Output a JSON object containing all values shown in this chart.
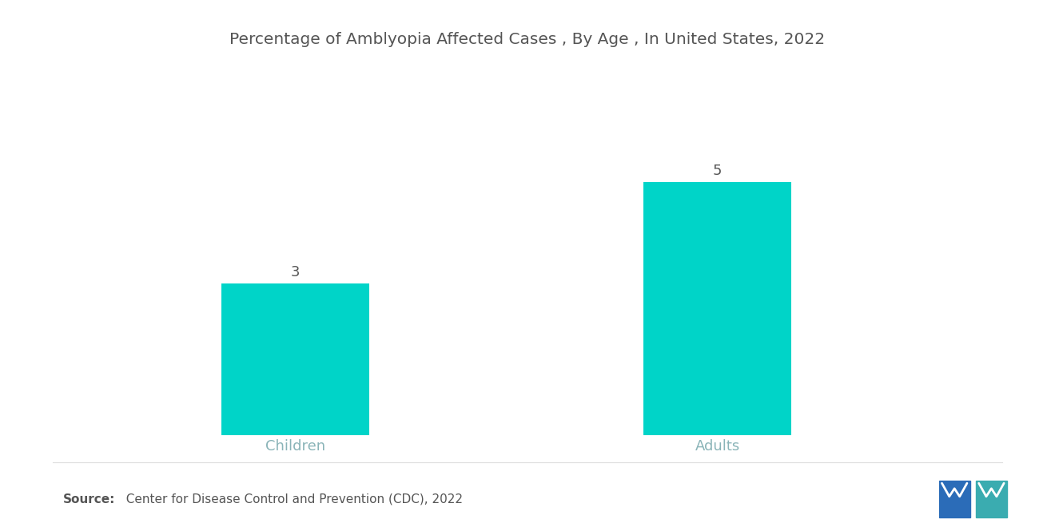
{
  "title": "Percentage of Amblyopia Affected Cases , By Age , In United States, 2022",
  "categories": [
    "Children",
    "Adults"
  ],
  "values": [
    3,
    5
  ],
  "bar_color": "#00D4C8",
  "value_labels": [
    "3",
    "5"
  ],
  "ylim": [
    0,
    6.5
  ],
  "background_color": "#ffffff",
  "title_fontsize": 14.5,
  "label_fontsize": 13,
  "value_fontsize": 13,
  "source_bold": "Source:",
  "source_text": "  Center for Disease Control and Prevention (CDC), 2022",
  "source_fontsize": 11,
  "bar_width": 0.35,
  "x_positions": [
    1,
    2
  ],
  "xlim": [
    0.5,
    2.7
  ],
  "tick_color": "#8ab4b8",
  "text_color": "#555555"
}
